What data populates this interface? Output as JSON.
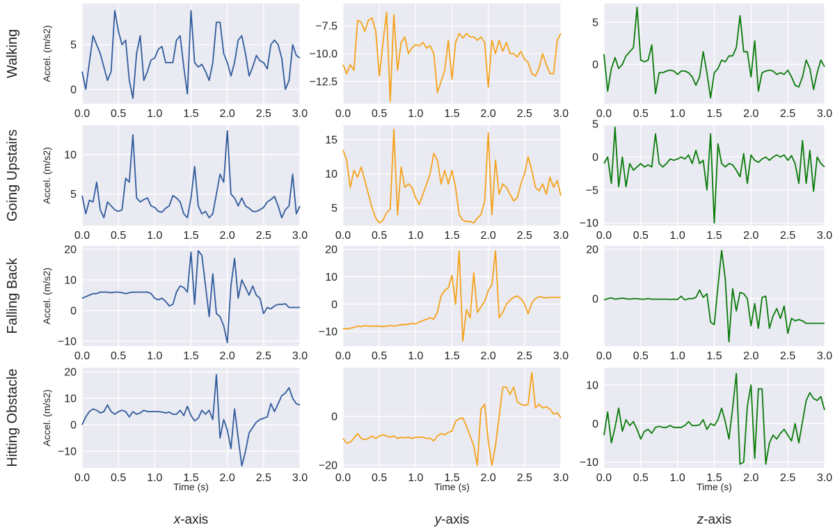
{
  "chart_data": {
    "type": "line",
    "layout": "grid 4 rows x 3 columns",
    "rows": [
      "Walking",
      "Going Upstairs",
      "Falling Back",
      "Hitting Obstacle"
    ],
    "columns": [
      {
        "italic": "x",
        "rest": "-axis",
        "color": "#2f5b9c"
      },
      {
        "italic": "y",
        "rest": "-axis",
        "color": "#f5a21b"
      },
      {
        "italic": "z",
        "rest": "-axis",
        "color": "#087a08"
      }
    ],
    "ylabel": "Accel. (m/s2)",
    "xlabel": "Time (s)",
    "xlim": [
      0,
      3
    ],
    "xticks": [
      "0.0",
      "0.5",
      "1.0",
      "1.5",
      "2.0",
      "2.5",
      "3.0"
    ],
    "grid": true,
    "background": "#eaeaf2",
    "time": [
      0,
      0.05,
      0.1,
      0.15,
      0.2,
      0.25,
      0.3,
      0.35,
      0.4,
      0.45,
      0.5,
      0.55,
      0.6,
      0.65,
      0.7,
      0.75,
      0.8,
      0.85,
      0.9,
      0.95,
      1.0,
      1.05,
      1.1,
      1.15,
      1.2,
      1.25,
      1.3,
      1.35,
      1.4,
      1.45,
      1.5,
      1.55,
      1.6,
      1.65,
      1.7,
      1.75,
      1.8,
      1.85,
      1.9,
      1.95,
      2.0,
      2.05,
      2.1,
      2.15,
      2.2,
      2.25,
      2.3,
      2.35,
      2.4,
      2.45,
      2.5,
      2.55,
      2.6,
      2.65,
      2.7,
      2.75,
      2.8,
      2.85,
      2.9,
      2.95,
      3.0
    ],
    "panels": [
      {
        "row": 0,
        "col": 0,
        "ylim": [
          -1.6,
          9.6
        ],
        "yticks": [
          0,
          5
        ],
        "ytick_labels": [
          "0",
          "5"
        ],
        "values": [
          2,
          0,
          3,
          6,
          5,
          4,
          2.5,
          1,
          2,
          8.8,
          6.5,
          5,
          5.5,
          1,
          -1,
          4,
          6,
          1,
          2,
          3.3,
          3.5,
          4.5,
          4.8,
          3,
          3,
          3,
          5.5,
          6,
          2.5,
          -0.5,
          8.8,
          3,
          2.5,
          2.8,
          2,
          1,
          3,
          7.5,
          7.5,
          4,
          3,
          1.5,
          3,
          5.5,
          6,
          4,
          1.5,
          2.5,
          3.8,
          3.2,
          3,
          2.3,
          5,
          5.5,
          5,
          3.5,
          0,
          1,
          5,
          3.8,
          3.5
        ]
      },
      {
        "row": 0,
        "col": 1,
        "ylim": [
          -14.5,
          -5.5
        ],
        "yticks": [
          -7.5,
          -10,
          -12.5
        ],
        "ytick_labels": [
          "−7.5",
          "−10.0",
          "−12.5"
        ],
        "values": [
          -11,
          -11.8,
          -11,
          -11.5,
          -7,
          -7.2,
          -8,
          -7,
          -6.8,
          -8,
          -12,
          -9,
          -6.3,
          -14.3,
          -6.5,
          -11.5,
          -9,
          -8.5,
          -10,
          -9.5,
          -9.2,
          -9.3,
          -9,
          -9.5,
          -9.3,
          -10,
          -13.5,
          -12.5,
          -11.5,
          -8.8,
          -12.3,
          -9,
          -8.2,
          -8.6,
          -8.2,
          -8.5,
          -8.5,
          -8.8,
          -8.5,
          -9,
          -13,
          -8.8,
          -10,
          -8.8,
          -9.8,
          -9,
          -10,
          -10,
          -10.3,
          -9.8,
          -10.5,
          -10.8,
          -11.8,
          -12,
          -11.3,
          -10,
          -11,
          -11.8,
          -11.8,
          -8.8,
          -8.2
        ]
      },
      {
        "row": 0,
        "col": 2,
        "ylim": [
          -4.7,
          7.25
        ],
        "yticks": [
          0,
          5
        ],
        "ytick_labels": [
          "0",
          "5"
        ],
        "values": [
          1.2,
          -3.2,
          -0.5,
          0.8,
          -0.5,
          0,
          1,
          1.5,
          2,
          6.8,
          0.5,
          0.3,
          0.5,
          2.3,
          -3.5,
          -1,
          -1,
          -0.8,
          -0.7,
          -0.8,
          -1.2,
          -0.8,
          -0.8,
          -1,
          -1.5,
          -2.5,
          -1.5,
          1.5,
          -1,
          -4,
          -1,
          -0.5,
          0.5,
          0.3,
          1,
          1,
          2,
          5.8,
          1.5,
          1.5,
          -1.5,
          2.8,
          -3.2,
          -1,
          -0.8,
          -0.7,
          -0.8,
          -1.2,
          -1,
          -1.2,
          -0.7,
          -1.5,
          -2.5,
          -2.7,
          -1.5,
          0.5,
          -0.5,
          -3,
          -1,
          0.5,
          -0.3
        ]
      },
      {
        "row": 1,
        "col": 0,
        "ylim": [
          1.0,
          13.7
        ],
        "yticks": [
          5,
          10
        ],
        "ytick_labels": [
          "5",
          "10"
        ],
        "values": [
          4.8,
          2.5,
          4.2,
          4,
          6.5,
          3,
          2,
          4,
          3.5,
          3,
          2.8,
          3,
          7,
          6.5,
          12.5,
          4.5,
          4,
          4.3,
          4.5,
          3.5,
          3.3,
          2.8,
          2.7,
          3.2,
          3.5,
          4.8,
          4.5,
          4,
          2.5,
          2,
          4.5,
          8.5,
          3.5,
          2.5,
          2.8,
          2,
          2.5,
          5,
          7.5,
          6.5,
          13,
          5,
          4.5,
          3.5,
          4.5,
          3.5,
          3.2,
          2.8,
          2.8,
          3,
          3.3,
          4,
          4.3,
          4.7,
          3.5,
          2,
          3,
          3.5,
          7.5,
          2.5,
          3.5
        ]
      },
      {
        "row": 1,
        "col": 1,
        "ylim": [
          2.4,
          17.1
        ],
        "yticks": [
          5,
          10,
          15
        ],
        "ytick_labels": [
          "5",
          "10",
          "15"
        ],
        "values": [
          13.5,
          12,
          8,
          10.5,
          9.5,
          11,
          9,
          7,
          5,
          3.5,
          2.8,
          3.2,
          4.3,
          4.8,
          16.5,
          4,
          11,
          8,
          8.5,
          8,
          6.5,
          5.5,
          7,
          8.5,
          10,
          13,
          12,
          8.5,
          10.5,
          8.5,
          10.5,
          8,
          4,
          3.2,
          3,
          3,
          2.8,
          3.5,
          4,
          6,
          16,
          4,
          12,
          7,
          8.5,
          8,
          7,
          6,
          6.5,
          8.5,
          10,
          12.5,
          10.5,
          8,
          7.5,
          8.5,
          7,
          9.5,
          8,
          9,
          6.8
        ]
      },
      {
        "row": 1,
        "col": 2,
        "ylim": [
          -10.4,
          4.8
        ],
        "yticks": [
          5,
          0,
          -5,
          -10
        ],
        "ytick_labels": [
          "5",
          "0",
          "−5",
          "−10"
        ],
        "values": [
          -1,
          0,
          -4,
          4.5,
          -4.5,
          0,
          -4.5,
          -1,
          -2,
          -1.5,
          -1,
          -1.5,
          -1.2,
          -1.5,
          3.5,
          -1,
          -1.5,
          -1,
          -0.3,
          -0.5,
          -0.3,
          0,
          -0.3,
          0.3,
          -1,
          1,
          -1,
          -0.5,
          -5,
          3.5,
          -10,
          2,
          -1,
          -1.5,
          -1,
          -1.2,
          -2,
          -3,
          0.5,
          -4,
          0.3,
          -0.5,
          -0.8,
          -0.3,
          0,
          -0.5,
          0,
          0.3,
          0,
          0.3,
          -0.5,
          0.2,
          -1,
          -4,
          2.5,
          -4,
          1,
          -5.2,
          0,
          -1,
          -1.5
        ]
      },
      {
        "row": 2,
        "col": 0,
        "ylim": [
          -11.6,
          21.1
        ],
        "yticks": [
          20,
          10,
          0,
          -10
        ],
        "ytick_labels": [
          "20",
          "10",
          "0",
          "−10"
        ],
        "values": [
          4,
          4.5,
          5,
          5.5,
          5.5,
          6,
          6,
          6,
          5.8,
          6,
          6,
          5.8,
          5.5,
          5.8,
          6,
          6,
          6,
          6,
          6,
          5.5,
          4,
          3.5,
          4,
          3,
          1.5,
          2,
          6,
          8,
          7.5,
          6,
          19,
          2,
          19.5,
          18,
          8,
          -2,
          12,
          -1,
          -2,
          -5,
          -10.5,
          8,
          17,
          4,
          10,
          7.5,
          5,
          8,
          5,
          4,
          -1,
          1,
          0.5,
          1.5,
          2,
          2,
          2.2,
          1,
          1,
          1,
          1
        ]
      },
      {
        "row": 2,
        "col": 1,
        "ylim": [
          -15.3,
          21.3
        ],
        "yticks": [
          20,
          10,
          0,
          -10
        ],
        "ytick_labels": [
          "20",
          "10",
          "0",
          "−10"
        ],
        "values": [
          -9,
          -9,
          -8.8,
          -8.5,
          -8,
          -8.2,
          -7.8,
          -8,
          -8,
          -8,
          -8,
          -8.2,
          -8,
          -7.8,
          -8,
          -7.8,
          -7.5,
          -7.5,
          -7.3,
          -7,
          -7.2,
          -6.5,
          -6,
          -5.5,
          -5,
          -5.5,
          -3,
          3,
          5,
          6,
          10.5,
          0,
          19.5,
          -13.5,
          -2,
          -5,
          11.5,
          -3,
          -1,
          1,
          5,
          7,
          19.5,
          -5,
          -3,
          0,
          1.5,
          2.5,
          3,
          2,
          0,
          -3.5,
          0.5,
          2,
          2.8,
          2.5,
          2.3,
          2.5,
          2.5,
          2.5,
          2.5
        ]
      },
      {
        "row": 2,
        "col": 2,
        "ylim": [
          -19.2,
          21.4
        ],
        "yticks": [
          20,
          0
        ],
        "ytick_labels": [
          "20",
          "0"
        ],
        "values": [
          -0.5,
          0,
          0.3,
          -0.2,
          0,
          0.2,
          0,
          -0.2,
          0,
          0,
          -0.2,
          -0.2,
          0,
          -0.2,
          -0.2,
          -0.2,
          -0.2,
          -0.2,
          -0.3,
          -0.2,
          -0.3,
          1,
          -0.5,
          0,
          0,
          0.5,
          3.5,
          0.5,
          2,
          -9.5,
          -10.5,
          5,
          19.5,
          8,
          -17.5,
          4,
          -5,
          2.5,
          2,
          0,
          -11,
          -2,
          -12,
          0.5,
          1,
          -12,
          -7,
          -4,
          -8,
          -3,
          -14,
          -8,
          -9,
          -8.5,
          -9,
          -10,
          -10,
          -10,
          -10,
          -10,
          -10
        ]
      },
      {
        "row": 3,
        "col": 0,
        "ylim": [
          -16.3,
          21.6
        ],
        "yticks": [
          20,
          10,
          0,
          -10
        ],
        "ytick_labels": [
          "20",
          "10",
          "0",
          "−10"
        ],
        "values": [
          0,
          3,
          5,
          6,
          5.5,
          4.5,
          5,
          7.5,
          5,
          4,
          5,
          5.5,
          5,
          3,
          5,
          4,
          4.5,
          5.5,
          5,
          5,
          5,
          5,
          4.8,
          4.5,
          4.8,
          4,
          4,
          5.5,
          3.5,
          7,
          3.5,
          1.5,
          2.5,
          5.5,
          4,
          5.5,
          2,
          19,
          -5,
          2,
          -2,
          -9,
          6,
          -5,
          -15.5,
          -10,
          -3,
          -1,
          1,
          2,
          2.5,
          3,
          8,
          5,
          8,
          11,
          12,
          14,
          10,
          8,
          7.5
        ]
      },
      {
        "row": 3,
        "col": 1,
        "ylim": [
          -21.1,
          20
        ],
        "yticks": [
          0,
          -20
        ],
        "ytick_labels": [
          "0",
          "−20"
        ],
        "values": [
          -9,
          -11,
          -10.5,
          -9,
          -7,
          -9,
          -9.5,
          -9,
          -8,
          -9,
          -8,
          -7.5,
          -8,
          -8.5,
          -8,
          -9,
          -8.5,
          -8.8,
          -8.5,
          -9,
          -8.5,
          -8.5,
          -8.5,
          -9,
          -9,
          -10,
          -8,
          -7,
          -7.5,
          -6.5,
          -6,
          -2,
          -1,
          -0.5,
          -4,
          -8,
          -12,
          -20,
          3,
          5,
          -10,
          -20,
          -12,
          0,
          12,
          12,
          9,
          12,
          6,
          5,
          4.5,
          5,
          18,
          3.5,
          5,
          3.5,
          4,
          3,
          1,
          1.5,
          -0.5
        ]
      },
      {
        "row": 3,
        "col": 2,
        "ylim": [
          -11.5,
          14.5
        ],
        "yticks": [
          10,
          0,
          -10
        ],
        "ytick_labels": [
          "10",
          "0",
          "−10"
        ],
        "values": [
          -3,
          3,
          -5,
          -1,
          4,
          -2,
          1,
          -0.5,
          0.5,
          -1.5,
          -4,
          -2,
          -1.5,
          -2.5,
          -1,
          -0.7,
          -1,
          -1,
          -0.5,
          -1,
          -1,
          -1,
          -0.5,
          0.5,
          -0.5,
          -0.5,
          -0.3,
          1,
          -1.5,
          0,
          -0.5,
          1,
          4,
          0.5,
          -4,
          4,
          13,
          -10.5,
          -10,
          4.5,
          10,
          -9,
          9,
          9,
          -10.5,
          -5,
          -3,
          -4,
          -2.5,
          -1.5,
          -3,
          -4.5,
          0,
          -5,
          0.5,
          6,
          8,
          6.5,
          6,
          7,
          3.5
        ]
      }
    ]
  }
}
